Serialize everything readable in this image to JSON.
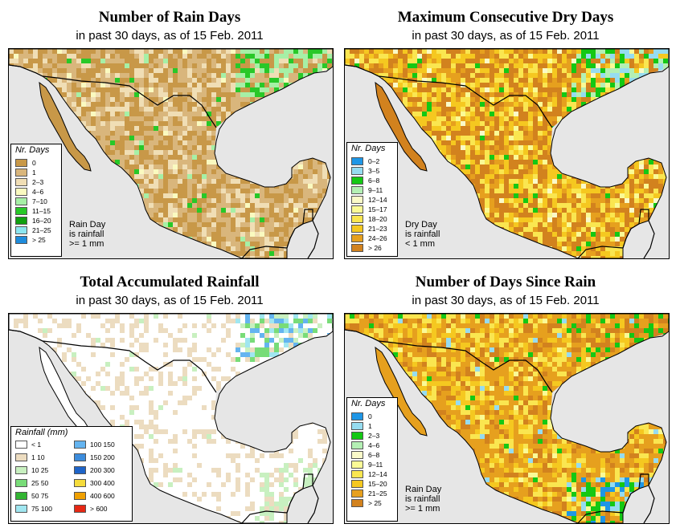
{
  "panels": [
    {
      "title": "Number of Rain Days",
      "subtitle": "in past 30 days, as of  15 Feb. 2011",
      "palette": "brown",
      "legend": {
        "title": "Nr. Days",
        "items": [
          {
            "label": "0",
            "color": "#c89848"
          },
          {
            "label": "1",
            "color": "#d9b67c"
          },
          {
            "label": "2–3",
            "color": "#f0deb5"
          },
          {
            "label": "4–6",
            "color": "#fafac0"
          },
          {
            "label": "7–10",
            "color": "#a6f0a6"
          },
          {
            "label": "11–15",
            "color": "#28c828"
          },
          {
            "label": "16–20",
            "color": "#10a010"
          },
          {
            "label": "21–25",
            "color": "#8ce6f0"
          },
          {
            "label": "> 25",
            "color": "#1e8cdc"
          }
        ]
      },
      "note": [
        "Rain Day",
        "is rainfall",
        ">= 1 mm"
      ]
    },
    {
      "title": "Maximum Consecutive Dry Days",
      "subtitle": "in past 30 days, as of  15 Feb. 2011",
      "palette": "orange",
      "legend": {
        "title": "Nr. Days",
        "items": [
          {
            "label": "0–2",
            "color": "#1e96e6"
          },
          {
            "label": "3–5",
            "color": "#96dcf0"
          },
          {
            "label": "6–8",
            "color": "#14c814"
          },
          {
            "label": "9–11",
            "color": "#b4f0b4"
          },
          {
            "label": "12–14",
            "color": "#fafac8"
          },
          {
            "label": "15–17",
            "color": "#fafa96"
          },
          {
            "label": "18–20",
            "color": "#fae650"
          },
          {
            "label": "21–23",
            "color": "#f5c820"
          },
          {
            "label": "24–26",
            "color": "#e6a01e"
          },
          {
            "label": "> 26",
            "color": "#d2821e"
          }
        ]
      },
      "note": [
        "Dry Day",
        "is rainfall",
        "< 1 mm"
      ]
    },
    {
      "title": "Total Accumulated Rainfall",
      "subtitle": "in past 30 days, as of  15 Feb. 2011",
      "palette": "white",
      "legend": {
        "title": "Rainfall (mm)",
        "col1": [
          {
            "label": "< 1",
            "color": "#ffffff"
          },
          {
            "label": "1    10",
            "color": "#ecdcc0"
          },
          {
            "label": "10    25",
            "color": "#c8f0c0"
          },
          {
            "label": "25    50",
            "color": "#78dc78"
          },
          {
            "label": "50    75",
            "color": "#32b432"
          },
          {
            "label": "75   100",
            "color": "#a0e6f0"
          }
        ],
        "col2": [
          {
            "label": "100  150",
            "color": "#64b4f0"
          },
          {
            "label": "150  200",
            "color": "#3c8cdc"
          },
          {
            "label": "200  300",
            "color": "#1e64c8"
          },
          {
            "label": "300  400",
            "color": "#f5dc3c"
          },
          {
            "label": "400  600",
            "color": "#f0a000"
          },
          {
            "label": "> 600",
            "color": "#e62814"
          }
        ]
      },
      "note": []
    },
    {
      "title": "Number of Days Since Rain",
      "subtitle": "in past 30 days, as of  15 Feb. 2011",
      "palette": "orange2",
      "legend": {
        "title": "Nr. Days",
        "items": [
          {
            "label": "0",
            "color": "#1e96e6"
          },
          {
            "label": "1",
            "color": "#96dcf0"
          },
          {
            "label": "2–3",
            "color": "#14c814"
          },
          {
            "label": "4–6",
            "color": "#b4f0b4"
          },
          {
            "label": "6–8",
            "color": "#fafac8"
          },
          {
            "label": "9–11",
            "color": "#fafa96"
          },
          {
            "label": "12–14",
            "color": "#fae650"
          },
          {
            "label": "15–20",
            "color": "#f5c820"
          },
          {
            "label": "21–25",
            "color": "#e6a01e"
          },
          {
            "label": "> 25",
            "color": "#d2821e"
          }
        ]
      },
      "note": [
        "Rain Day",
        "is rainfall",
        ">= 1 mm"
      ]
    }
  ],
  "colors": {
    "ocean": "#e6e6e6",
    "border": "#000000"
  }
}
